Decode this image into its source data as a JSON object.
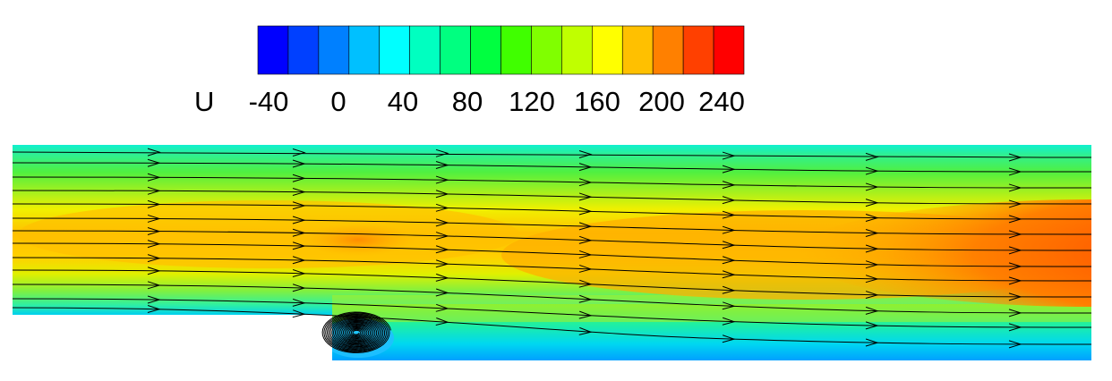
{
  "legend": {
    "variable": "U",
    "tick_labels": [
      "-40",
      "0",
      "40",
      "80",
      "120",
      "160",
      "200",
      "240"
    ],
    "colors": [
      "#0000ff",
      "#0040ff",
      "#0080ff",
      "#00c0ff",
      "#00ffff",
      "#00ffc0",
      "#00ff80",
      "#00ff40",
      "#40ff00",
      "#80ff00",
      "#c0ff00",
      "#ffff00",
      "#ffc000",
      "#ff8000",
      "#ff4000",
      "#ff0000"
    ]
  },
  "field": {
    "description_colors": {
      "wall": "#00e6c8",
      "core": "#ffb000",
      "peak": "#ff3000",
      "recirculation": "#0080ff"
    }
  }
}
